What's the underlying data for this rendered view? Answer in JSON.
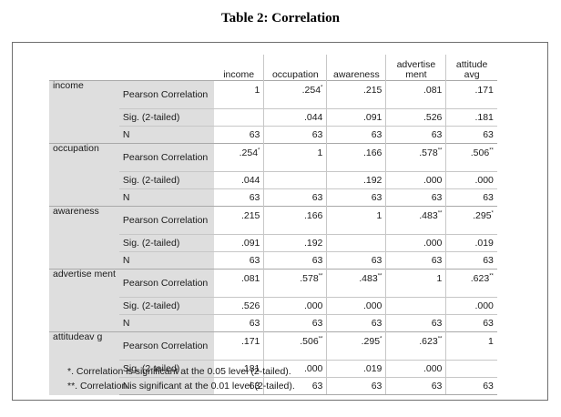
{
  "title": "Table 2: Correlation",
  "columns": [
    "income",
    "occupation",
    "awareness",
    "advertise ment",
    "attitude avg"
  ],
  "stat_labels": [
    "Pearson Correlation",
    "Sig. (2-tailed)",
    "N"
  ],
  "rows": [
    {
      "label": "income",
      "r": [
        {
          "v": "1",
          "s": ""
        },
        {
          "v": ".254",
          "s": "*"
        },
        {
          "v": ".215",
          "s": ""
        },
        {
          "v": ".081",
          "s": ""
        },
        {
          "v": ".171",
          "s": ""
        }
      ],
      "sig": [
        "",
        ".044",
        ".091",
        ".526",
        ".181"
      ],
      "n": [
        "63",
        "63",
        "63",
        "63",
        "63"
      ]
    },
    {
      "label": "occupation",
      "r": [
        {
          "v": ".254",
          "s": "*"
        },
        {
          "v": "1",
          "s": ""
        },
        {
          "v": ".166",
          "s": ""
        },
        {
          "v": ".578",
          "s": "**"
        },
        {
          "v": ".506",
          "s": "**"
        }
      ],
      "sig": [
        ".044",
        "",
        ".192",
        ".000",
        ".000"
      ],
      "n": [
        "63",
        "63",
        "63",
        "63",
        "63"
      ]
    },
    {
      "label": "awareness",
      "r": [
        {
          "v": ".215",
          "s": ""
        },
        {
          "v": ".166",
          "s": ""
        },
        {
          "v": "1",
          "s": ""
        },
        {
          "v": ".483",
          "s": "**"
        },
        {
          "v": ".295",
          "s": "*"
        }
      ],
      "sig": [
        ".091",
        ".192",
        "",
        ".000",
        ".019"
      ],
      "n": [
        "63",
        "63",
        "63",
        "63",
        "63"
      ]
    },
    {
      "label": "advertise ment",
      "r": [
        {
          "v": ".081",
          "s": ""
        },
        {
          "v": ".578",
          "s": "**"
        },
        {
          "v": ".483",
          "s": "**"
        },
        {
          "v": "1",
          "s": ""
        },
        {
          "v": ".623",
          "s": "**"
        }
      ],
      "sig": [
        ".526",
        ".000",
        ".000",
        "",
        ".000"
      ],
      "n": [
        "63",
        "63",
        "63",
        "63",
        "63"
      ]
    },
    {
      "label": "attitudeav g",
      "r": [
        {
          "v": ".171",
          "s": ""
        },
        {
          "v": ".506",
          "s": "**"
        },
        {
          "v": ".295",
          "s": "*"
        },
        {
          "v": ".623",
          "s": "**"
        },
        {
          "v": "1",
          "s": ""
        }
      ],
      "sig": [
        ".181",
        ".000",
        ".019",
        ".000",
        ""
      ],
      "n": [
        "63",
        "63",
        "63",
        "63",
        "63"
      ]
    }
  ],
  "notes": [
    "*. Correlation is significant at the 0.05 level (2-tailed).",
    "**. Correlation is significant at the 0.01 level (2-tailed)."
  ]
}
